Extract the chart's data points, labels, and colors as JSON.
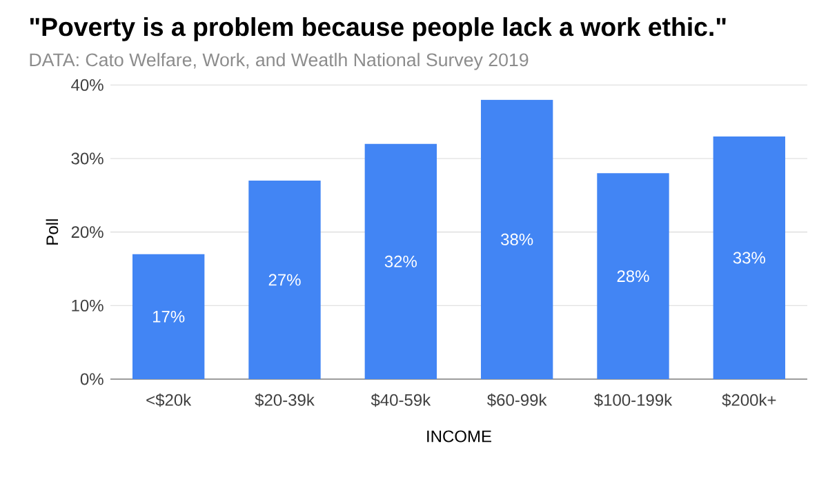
{
  "chart_data": {
    "type": "bar",
    "title": "\"Poverty is a problem because people lack a work ethic.\"",
    "subtitle": "DATA: Cato Welfare, Work, and Weatlh National Survey 2019",
    "categories": [
      "<$20k",
      "$20-39k",
      "$40-59k",
      "$60-99k",
      "$100-199k",
      "$200k+"
    ],
    "values": [
      17,
      27,
      32,
      38,
      28,
      33
    ],
    "value_labels": [
      "17%",
      "27%",
      "32%",
      "38%",
      "28%",
      "33%"
    ],
    "color": "#4285f4",
    "xlabel": "INCOME",
    "ylabel": "Poll",
    "ylim": [
      0,
      40
    ],
    "yticks": [
      {
        "value": 0,
        "label": "0%"
      },
      {
        "value": 10,
        "label": "10%"
      },
      {
        "value": 20,
        "label": "20%"
      },
      {
        "value": 30,
        "label": "30%"
      },
      {
        "value": 40,
        "label": "40%"
      }
    ],
    "grid": "y"
  }
}
